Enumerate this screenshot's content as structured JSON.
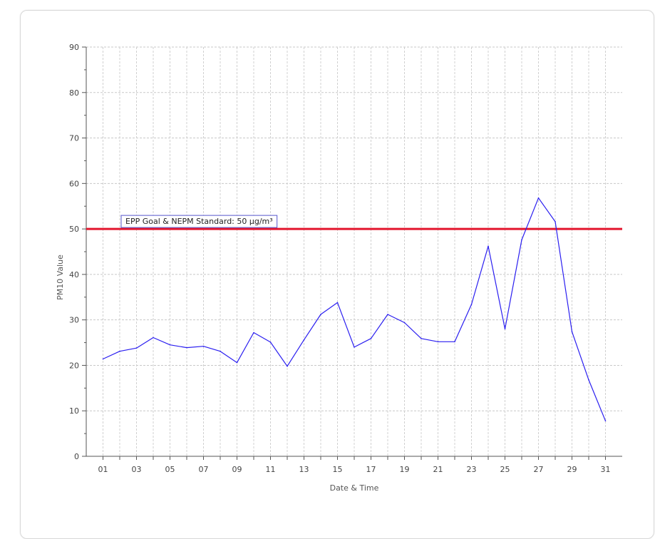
{
  "chart_data": {
    "type": "line",
    "title": "",
    "xlabel": "Date & Time",
    "ylabel": "PM10 Value",
    "xlim": [
      0,
      32
    ],
    "ylim": [
      0,
      90
    ],
    "yticks": [
      "0",
      "10",
      "20",
      "30",
      "40",
      "50",
      "60",
      "70",
      "80",
      "90"
    ],
    "xtick_values": [
      1,
      3,
      5,
      7,
      9,
      11,
      13,
      15,
      17,
      19,
      21,
      23,
      25,
      27,
      29,
      31
    ],
    "xticks": [
      "01",
      "03",
      "05",
      "07",
      "09",
      "11",
      "13",
      "15",
      "17",
      "19",
      "21",
      "23",
      "25",
      "27",
      "29",
      "31"
    ],
    "grid": true,
    "series": [
      {
        "color": "#2a1ef0",
        "x": [
          1,
          2,
          3,
          4,
          5,
          6,
          7,
          8,
          9,
          10,
          11,
          12,
          13,
          14,
          15,
          16,
          17,
          18,
          19,
          20,
          21,
          22,
          23,
          24,
          25,
          26,
          27,
          28,
          29,
          30,
          31
        ],
        "values": [
          21.4,
          23.1,
          23.8,
          26.1,
          24.5,
          23.9,
          24.2,
          23.1,
          20.6,
          27.2,
          25.1,
          19.8,
          25.6,
          31.2,
          33.8,
          24.0,
          25.9,
          31.2,
          29.4,
          25.9,
          25.2,
          25.2,
          33.4,
          46.2,
          28.0,
          47.6,
          56.8,
          51.6,
          27.4,
          16.8,
          7.8
        ]
      }
    ],
    "reference_line": {
      "value": 50,
      "color": "#e3162e",
      "label": "EPP Goal & NEPM Standard: 50 μg/m³"
    }
  }
}
